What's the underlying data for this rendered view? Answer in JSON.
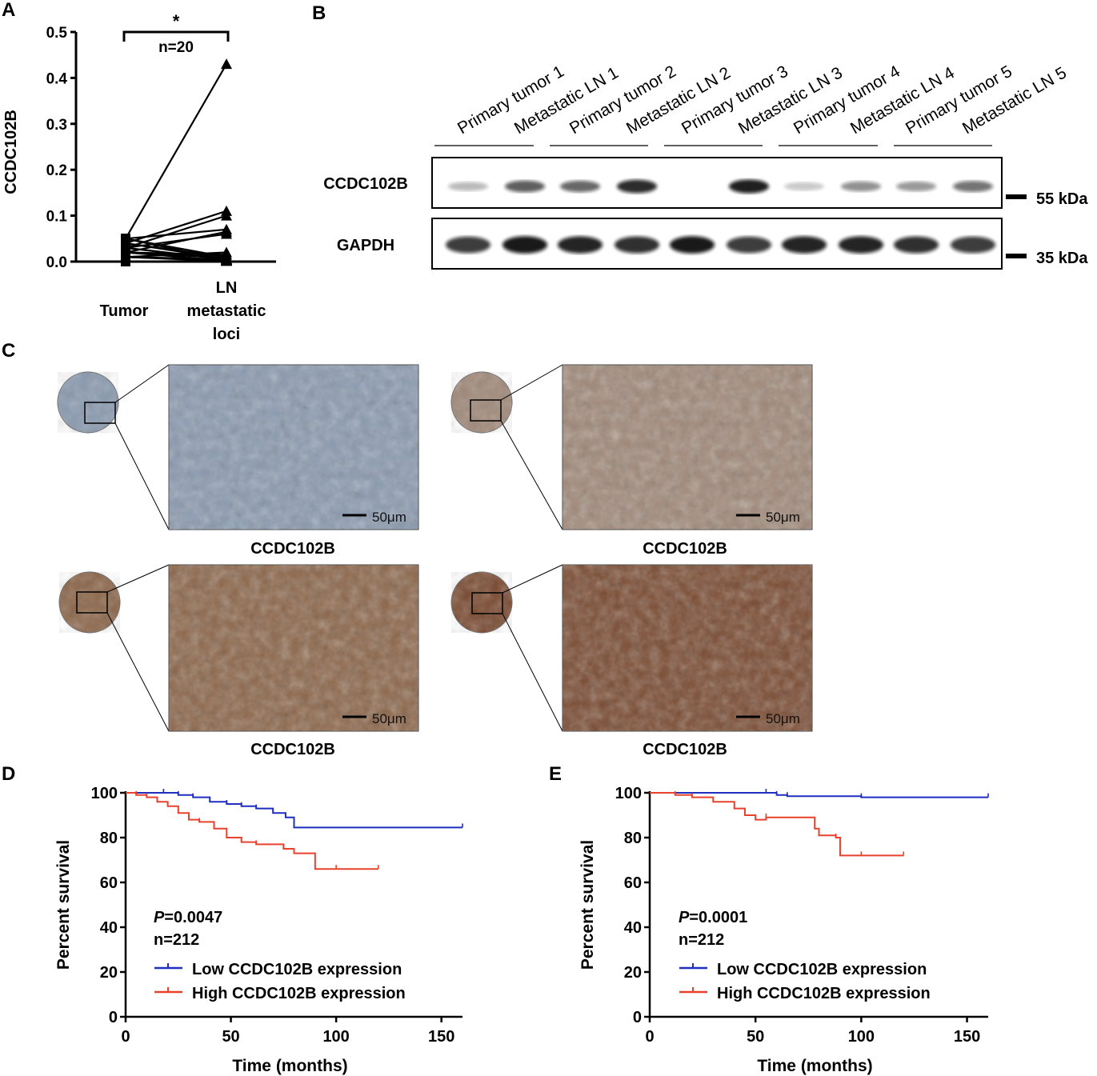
{
  "panels": {
    "A": {
      "letter": "A",
      "ylabel": "CCDC102B",
      "significance": "*",
      "n_label": "n=20",
      "x_ticks": [
        "Tumor",
        "LN\nmetastatic\nloci"
      ],
      "y_ticks": [
        "0.0",
        "0.1",
        "0.2",
        "0.3",
        "0.4",
        "0.5"
      ],
      "ylim": [
        0,
        0.5
      ],
      "pairs": [
        [
          0.05,
          0.43
        ],
        [
          0.04,
          0.11
        ],
        [
          0.03,
          0.1
        ],
        [
          0.05,
          0.07
        ],
        [
          0.02,
          0.065
        ],
        [
          0.03,
          0.06
        ],
        [
          0.01,
          0.02
        ],
        [
          0.02,
          0.015
        ],
        [
          0.04,
          0.01
        ],
        [
          0.01,
          0.005
        ],
        [
          0.03,
          0.005
        ],
        [
          0.02,
          0.008
        ],
        [
          0.05,
          0.01
        ],
        [
          0.0,
          0.002
        ],
        [
          0.01,
          0.003
        ],
        [
          0.03,
          0.004
        ],
        [
          0.02,
          0.002
        ],
        [
          0.04,
          0.006
        ],
        [
          0.01,
          0.001
        ],
        [
          0.05,
          0.003
        ]
      ]
    },
    "B": {
      "letter": "B",
      "lanes": [
        "Primary tumor 1",
        "Metastatic LN 1",
        "Primary tumor 2",
        "Metastatic LN 2",
        "Primary tumor 3",
        "Metastatic LN 3",
        "Primary tumor 4",
        "Metastatic LN 4",
        "Primary tumor 5",
        "Metastatic LN 5"
      ],
      "rows": [
        "CCDC102B",
        "GAPDH"
      ],
      "markers": [
        "55 kDa",
        "35 kDa"
      ],
      "band_intensity_ccdc": [
        0.15,
        0.6,
        0.55,
        0.85,
        0.0,
        0.9,
        0.08,
        0.35,
        0.3,
        0.5
      ],
      "band_intensity_gapdh": [
        0.8,
        0.95,
        0.9,
        0.85,
        0.95,
        0.8,
        0.9,
        0.9,
        0.85,
        0.8
      ]
    },
    "C": {
      "letter": "C",
      "captions": [
        "CCDC102B",
        "CCDC102B",
        "CCDC102B",
        "CCDC102B"
      ],
      "scale_bar": "50μm",
      "colors": [
        "#8a9ab0",
        "#a08878",
        "#8c6548",
        "#7a4a30"
      ]
    },
    "D": {
      "letter": "D",
      "p_italic": "P",
      "p_value": "=0.0047",
      "n_label": "n=212",
      "legend": [
        "Low CCDC102B expression",
        "High CCDC102B expression"
      ]
    },
    "E": {
      "letter": "E",
      "p_italic": "P",
      "p_value": "=0.0001",
      "n_label": "n=212",
      "legend": [
        "Low CCDC102B expression",
        "High CCDC102B expression"
      ]
    }
  },
  "chart_data": [
    {
      "type": "line",
      "panel": "D",
      "xlabel": "Time (months)",
      "ylabel": "Percent survival",
      "xlim": [
        0,
        160
      ],
      "ylim": [
        0,
        100
      ],
      "x_ticks": [
        "0",
        "50",
        "100",
        "150"
      ],
      "y_ticks": [
        "0",
        "20",
        "40",
        "60",
        "80",
        "100"
      ],
      "series": [
        {
          "name": "Low CCDC102B expression",
          "color": "#1f2fbf",
          "x": [
            0,
            18,
            25,
            32,
            40,
            48,
            55,
            62,
            70,
            76,
            80,
            160
          ],
          "y": [
            100,
            100,
            99,
            98,
            96,
            95,
            94,
            93,
            91,
            89,
            84.5,
            84.5
          ]
        },
        {
          "name": "High CCDC102B expression",
          "color": "#e8412c",
          "x": [
            0,
            5,
            10,
            15,
            20,
            25,
            30,
            35,
            42,
            48,
            55,
            62,
            75,
            80,
            90,
            100,
            120
          ],
          "y": [
            100,
            99,
            98,
            96,
            94,
            91,
            88,
            87,
            84,
            80,
            78,
            77,
            75,
            73,
            66,
            66,
            66
          ]
        }
      ]
    },
    {
      "type": "line",
      "panel": "E",
      "xlabel": "Time (months)",
      "ylabel": "Percent survival",
      "xlim": [
        0,
        160
      ],
      "ylim": [
        0,
        100
      ],
      "x_ticks": [
        "0",
        "50",
        "100",
        "150"
      ],
      "y_ticks": [
        "0",
        "20",
        "40",
        "60",
        "80",
        "100"
      ],
      "series": [
        {
          "name": "Low CCDC102B expression",
          "color": "#1f2fbf",
          "x": [
            0,
            55,
            60,
            65,
            100,
            160
          ],
          "y": [
            100,
            100,
            99,
            98.5,
            98,
            98
          ]
        },
        {
          "name": "High CCDC102B expression",
          "color": "#e8412c",
          "x": [
            0,
            12,
            20,
            30,
            40,
            45,
            50,
            55,
            78,
            80,
            88,
            90,
            100,
            120
          ],
          "y": [
            100,
            99,
            98,
            96,
            93,
            90,
            88,
            89,
            84,
            81,
            80,
            72,
            72,
            72
          ]
        }
      ]
    }
  ]
}
